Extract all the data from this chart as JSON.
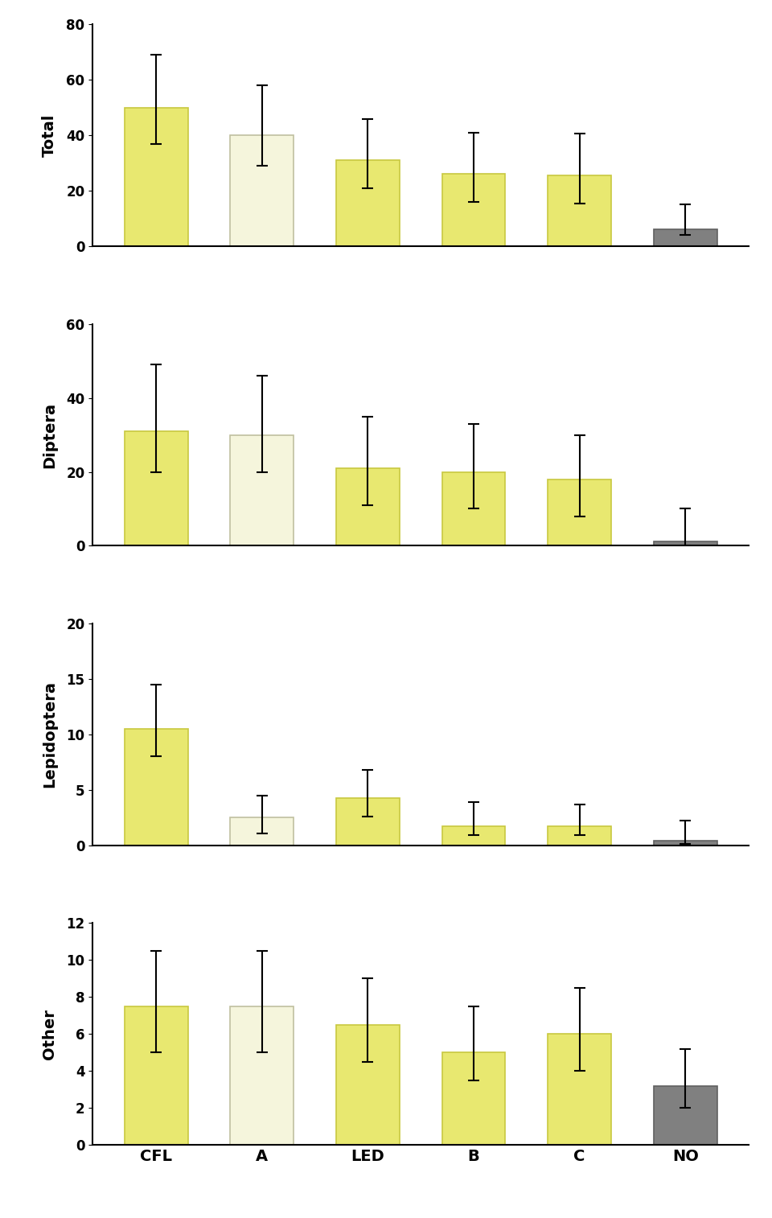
{
  "categories": [
    "CFL",
    "A",
    "LED",
    "B",
    "C",
    "NO"
  ],
  "panels": [
    {
      "ylabel": "Total",
      "ylim": [
        0,
        80
      ],
      "yticks": [
        0,
        20,
        40,
        60,
        80
      ],
      "values": [
        50,
        40,
        31,
        26,
        25.5,
        6
      ],
      "yerr_low": [
        13,
        11,
        10,
        10,
        10,
        2
      ],
      "yerr_high": [
        19,
        18,
        15,
        15,
        15,
        9
      ]
    },
    {
      "ylabel": "Diptera",
      "ylim": [
        0,
        60
      ],
      "yticks": [
        0,
        20,
        40,
        60
      ],
      "values": [
        31,
        30,
        21,
        20,
        18,
        1.2
      ],
      "yerr_low": [
        11,
        10,
        10,
        10,
        10,
        1
      ],
      "yerr_high": [
        18,
        16,
        14,
        13,
        12,
        9
      ]
    },
    {
      "ylabel": "Lepidoptera",
      "ylim": [
        0,
        20
      ],
      "yticks": [
        0,
        5,
        10,
        15,
        20
      ],
      "values": [
        10.5,
        2.5,
        4.3,
        1.7,
        1.7,
        0.4
      ],
      "yerr_low": [
        2.5,
        1.4,
        1.7,
        0.8,
        0.8,
        0.3
      ],
      "yerr_high": [
        4,
        2,
        2.5,
        2.2,
        2,
        1.8
      ]
    },
    {
      "ylabel": "Other",
      "ylim": [
        0,
        12
      ],
      "yticks": [
        0,
        2,
        4,
        6,
        8,
        10,
        12
      ],
      "values": [
        7.5,
        7.5,
        6.5,
        5,
        6,
        3.2
      ],
      "yerr_low": [
        2.5,
        2.5,
        2,
        1.5,
        2,
        1.2
      ],
      "yerr_high": [
        3,
        3,
        2.5,
        2.5,
        2.5,
        2
      ]
    }
  ],
  "bar_colors": [
    "#e8e870",
    "#f5f5dc",
    "#e8e870",
    "#e8e870",
    "#e8e870",
    "#808080"
  ],
  "bar_edge_colors": [
    "#c8c840",
    "#c0c0a0",
    "#c8c840",
    "#c8c840",
    "#c8c840",
    "#606060"
  ],
  "bar_width": 0.6,
  "figure_bg": "#ffffff",
  "spine_color": "#000000",
  "ylabel_fontsize": 14,
  "xlabel_fontsize": 14,
  "tick_fontsize": 12,
  "ylabel_fontweight": "bold"
}
